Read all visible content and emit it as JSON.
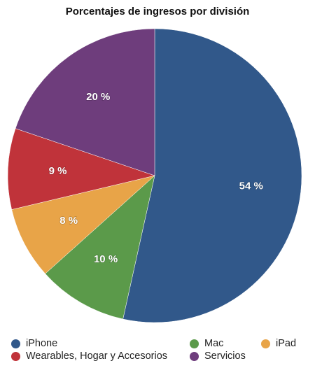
{
  "chart_data": {
    "type": "pie",
    "title": "Porcentajes de ingresos por división",
    "categories": [
      "iPhone",
      "Mac",
      "iPad",
      "Wearables, Hogar y Accesorios",
      "Servicios"
    ],
    "values": [
      54,
      10,
      8,
      9,
      20
    ],
    "data_labels": [
      "54 %",
      "10 %",
      "8 %",
      "9 %",
      "20 %"
    ],
    "colors": [
      "#31588a",
      "#5b9a4a",
      "#e8a448",
      "#c0333a",
      "#6e3d7c"
    ],
    "start_angle": "12 o'clock",
    "direction": "clockwise",
    "legend_position": "bottom"
  },
  "legend": {
    "items": [
      {
        "label": "iPhone",
        "color": "#31588a",
        "icon": "circle-swatch-icon"
      },
      {
        "label": "Mac",
        "color": "#5b9a4a",
        "icon": "circle-swatch-icon"
      },
      {
        "label": "iPad",
        "color": "#e8a448",
        "icon": "circle-swatch-icon"
      },
      {
        "label": "Wearables, Hogar y Accesorios",
        "color": "#c0333a",
        "icon": "circle-swatch-icon"
      },
      {
        "label": "Servicios",
        "color": "#6e3d7c",
        "icon": "circle-swatch-icon"
      }
    ]
  }
}
